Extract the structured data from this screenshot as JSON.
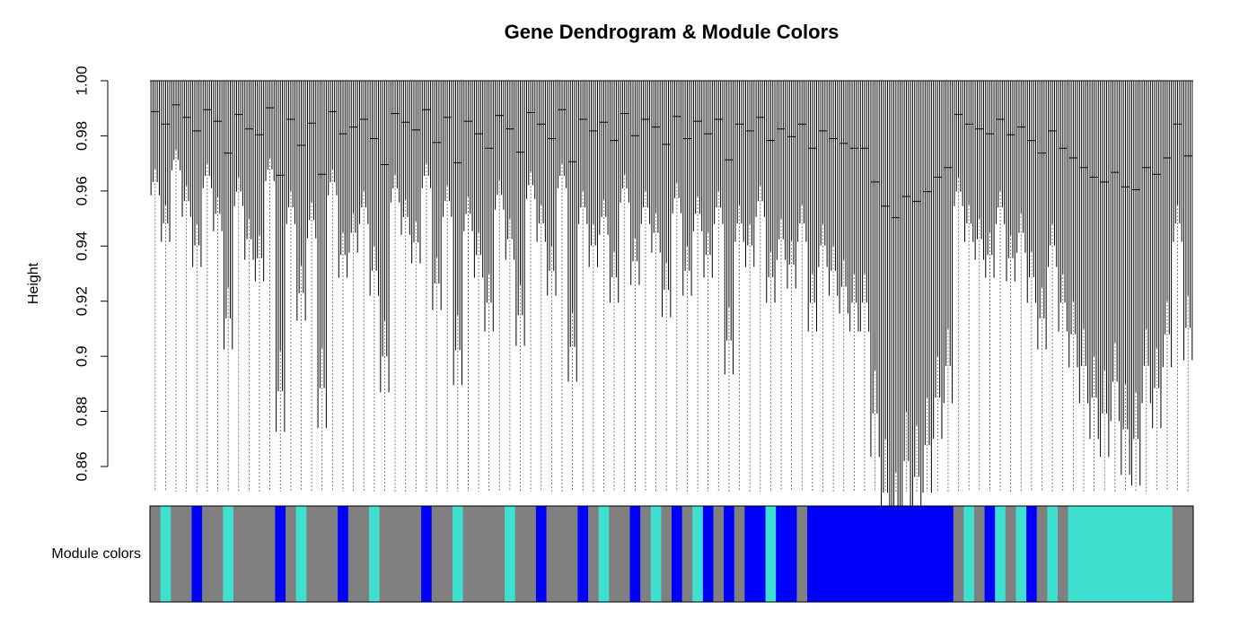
{
  "chart_data": {
    "type": "dendrogram",
    "title": "Gene Dendrogram & Module Colors",
    "y_label": "Height",
    "color_bar_label": "Module colors",
    "ylim": [
      0.86,
      1.0
    ],
    "yticks": [
      0.86,
      0.88,
      0.9,
      0.92,
      0.94,
      0.96,
      0.98,
      {
        "value": 1.0,
        "label": "1.00"
      }
    ],
    "leaf_heights": [
      0.968,
      0.955,
      0.975,
      0.962,
      0.948,
      0.97,
      0.958,
      0.925,
      0.965,
      0.95,
      0.944,
      0.972,
      0.902,
      0.96,
      0.933,
      0.956,
      0.903,
      0.968,
      0.945,
      0.952,
      0.96,
      0.94,
      0.913,
      0.966,
      0.957,
      0.949,
      0.97,
      0.936,
      0.962,
      0.915,
      0.958,
      0.945,
      0.93,
      0.964,
      0.95,
      0.926,
      0.967,
      0.955,
      0.94,
      0.97,
      0.916,
      0.96,
      0.948,
      0.957,
      0.938,
      0.966,
      0.943,
      0.96,
      0.952,
      0.934,
      0.963,
      0.94,
      0.958,
      0.945,
      0.96,
      0.918,
      0.955,
      0.948,
      0.962,
      0.938,
      0.95,
      0.942,
      0.955,
      0.93,
      0.948,
      0.94,
      0.935,
      0.93,
      0.93,
      0.895,
      0.87,
      0.858,
      0.88,
      0.875,
      0.885,
      0.9,
      0.91,
      0.965,
      0.955,
      0.95,
      0.945,
      0.96,
      0.944,
      0.952,
      0.938,
      0.925,
      0.948,
      0.93,
      0.92,
      0.91,
      0.9,
      0.895,
      0.905,
      0.89,
      0.887,
      0.91,
      0.903,
      0.92,
      0.955,
      0.922
    ],
    "module_colors": [
      "grey",
      "turquoise",
      "grey",
      "grey",
      "blue",
      "grey",
      "grey",
      "turquoise",
      "grey",
      "grey",
      "grey",
      "grey",
      "blue",
      "grey",
      "turquoise",
      "grey",
      "grey",
      "grey",
      "blue",
      "grey",
      "grey",
      "turquoise",
      "grey",
      "grey",
      "grey",
      "grey",
      "blue",
      "grey",
      "grey",
      "turquoise",
      "grey",
      "grey",
      "grey",
      "grey",
      "turquoise",
      "grey",
      "grey",
      "blue",
      "grey",
      "grey",
      "grey",
      "blue",
      "grey",
      "turquoise",
      "grey",
      "grey",
      "blue",
      "grey",
      "turquoise",
      "grey",
      "blue",
      "grey",
      "turquoise",
      "blue",
      "grey",
      "blue",
      "grey",
      "blue",
      "blue",
      "turquoise",
      "blue",
      "blue",
      "grey",
      "blue",
      "blue",
      "blue",
      "blue",
      "blue",
      "blue",
      "blue",
      "blue",
      "blue",
      "blue",
      "blue",
      "blue",
      "blue",
      "blue",
      "grey",
      "turquoise",
      "grey",
      "blue",
      "turquoise",
      "grey",
      "turquoise",
      "blue",
      "grey",
      "turquoise",
      "grey",
      "turquoise",
      "turquoise",
      "turquoise",
      "turquoise",
      "turquoise",
      "turquoise",
      "turquoise",
      "turquoise",
      "turquoise",
      "turquoise",
      "grey",
      "grey"
    ]
  }
}
